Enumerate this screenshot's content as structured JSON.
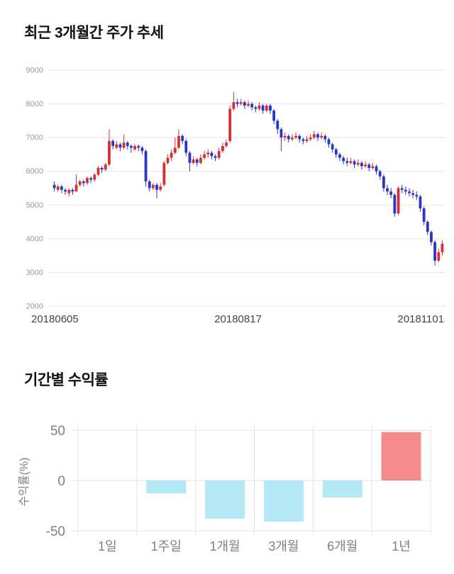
{
  "price_section": {
    "title": "최근 3개월간 주가 추세"
  },
  "returns_section": {
    "title": "기간별 수익률"
  },
  "chart_data": [
    {
      "type": "candlestick",
      "title": "최근 3개월간 주가 추세",
      "ylim": [
        2000,
        9000
      ],
      "y_ticks": [
        9000,
        8000,
        7000,
        6000,
        5000,
        4000,
        3000,
        2000
      ],
      "x_labels": [
        "20180605",
        "20180817",
        "20181101"
      ],
      "grid": true,
      "colors": {
        "up": "#d62f2f",
        "down": "#2a35c8",
        "grid": "#e6e6e6",
        "tick_text": "#999999",
        "x_label_text": "#444444"
      },
      "candles": [
        [
          5600,
          5700,
          5400,
          5500
        ],
        [
          5450,
          5600,
          5400,
          5550
        ],
        [
          5550,
          5600,
          5350,
          5450
        ],
        [
          5450,
          5500,
          5300,
          5400
        ],
        [
          5350,
          5500,
          5250,
          5450
        ],
        [
          5450,
          5500,
          5300,
          5400
        ],
        [
          5400,
          5900,
          5400,
          5600
        ],
        [
          5600,
          5750,
          5550,
          5700
        ],
        [
          5700,
          5750,
          5550,
          5650
        ],
        [
          5650,
          5850,
          5600,
          5800
        ],
        [
          5800,
          5850,
          5650,
          5750
        ],
        [
          5750,
          5950,
          5700,
          5900
        ],
        [
          5900,
          6150,
          5850,
          6100
        ],
        [
          6100,
          6150,
          5950,
          6050
        ],
        [
          6050,
          6250,
          6000,
          6200
        ],
        [
          6200,
          7250,
          6150,
          6900
        ],
        [
          6900,
          6950,
          6650,
          6750
        ],
        [
          6700,
          6900,
          6650,
          6800
        ],
        [
          6800,
          6850,
          6600,
          6700
        ],
        [
          6700,
          7100,
          6650,
          6850
        ],
        [
          6850,
          6900,
          6650,
          6750
        ],
        [
          6750,
          6800,
          6550,
          6700
        ],
        [
          6650,
          6800,
          6600,
          6750
        ],
        [
          6750,
          6800,
          6600,
          6700
        ],
        [
          6700,
          6750,
          6500,
          6600
        ],
        [
          6600,
          6650,
          5550,
          5700
        ],
        [
          5700,
          5750,
          5400,
          5500
        ],
        [
          5500,
          5650,
          5450,
          5600
        ],
        [
          5600,
          5650,
          5200,
          5450
        ],
        [
          5450,
          5650,
          5400,
          5550
        ],
        [
          5600,
          6300,
          5550,
          6250
        ],
        [
          6250,
          6500,
          6200,
          6400
        ],
        [
          6400,
          6650,
          6300,
          6550
        ],
        [
          6550,
          7000,
          6500,
          6700
        ],
        [
          6700,
          7250,
          6650,
          7050
        ],
        [
          7050,
          7100,
          6800,
          6900
        ],
        [
          6900,
          6950,
          6450,
          6550
        ],
        [
          6550,
          6600,
          6000,
          6250
        ],
        [
          6250,
          6450,
          6200,
          6350
        ],
        [
          6350,
          6400,
          6150,
          6250
        ],
        [
          6250,
          6500,
          6200,
          6400
        ],
        [
          6400,
          6600,
          6350,
          6500
        ],
        [
          6500,
          6650,
          6400,
          6550
        ],
        [
          6550,
          6600,
          6350,
          6450
        ],
        [
          6450,
          6500,
          6300,
          6400
        ],
        [
          6400,
          6700,
          6350,
          6600
        ],
        [
          6600,
          6850,
          6550,
          6750
        ],
        [
          6750,
          6950,
          6700,
          6850
        ],
        [
          6900,
          7950,
          6850,
          7850
        ],
        [
          7850,
          8350,
          7800,
          8050
        ],
        [
          8050,
          8150,
          7900,
          8000
        ],
        [
          8000,
          8150,
          7950,
          8050
        ],
        [
          8050,
          8100,
          7850,
          7950
        ],
        [
          7950,
          8100,
          7900,
          8000
        ],
        [
          8000,
          8050,
          7800,
          7900
        ],
        [
          7900,
          7950,
          7750,
          7850
        ],
        [
          7850,
          8050,
          7800,
          7950
        ],
        [
          7950,
          8000,
          7700,
          7800
        ],
        [
          7800,
          8000,
          7750,
          7950
        ],
        [
          7950,
          8000,
          7700,
          7800
        ],
        [
          7800,
          7850,
          7400,
          7500
        ],
        [
          7500,
          7550,
          7100,
          7250
        ],
        [
          7250,
          7300,
          6600,
          7000
        ],
        [
          7000,
          7150,
          6900,
          7050
        ],
        [
          7050,
          7100,
          6850,
          6950
        ],
        [
          6950,
          7100,
          6900,
          7000
        ],
        [
          7000,
          7150,
          6950,
          7050
        ],
        [
          7050,
          7100,
          6850,
          6950
        ],
        [
          6950,
          7000,
          6800,
          6900
        ],
        [
          6900,
          7050,
          6850,
          6950
        ],
        [
          6950,
          7100,
          6900,
          7000
        ],
        [
          7000,
          7200,
          6950,
          7100
        ],
        [
          7100,
          7150,
          6900,
          7000
        ],
        [
          7000,
          7150,
          6950,
          7050
        ],
        [
          7050,
          7100,
          6850,
          6950
        ],
        [
          6950,
          7000,
          6700,
          6800
        ],
        [
          6800,
          6850,
          6550,
          6650
        ],
        [
          6650,
          6700,
          6400,
          6500
        ],
        [
          6500,
          6550,
          6300,
          6400
        ],
        [
          6400,
          6450,
          6200,
          6300
        ],
        [
          6300,
          6400,
          6150,
          6250
        ],
        [
          6250,
          6400,
          6200,
          6300
        ],
        [
          6300,
          6350,
          6100,
          6200
        ],
        [
          6200,
          6350,
          6150,
          6250
        ],
        [
          6250,
          6300,
          6050,
          6150
        ],
        [
          6150,
          6300,
          6100,
          6200
        ],
        [
          6200,
          6250,
          6000,
          6100
        ],
        [
          6100,
          6250,
          6050,
          6150
        ],
        [
          6150,
          6200,
          5900,
          6000
        ],
        [
          6000,
          6050,
          5750,
          5850
        ],
        [
          5850,
          5900,
          5400,
          5500
        ],
        [
          5500,
          5600,
          5300,
          5400
        ],
        [
          5400,
          5500,
          5200,
          5300
        ],
        [
          5300,
          5350,
          4650,
          4750
        ],
        [
          4750,
          5550,
          4700,
          5500
        ],
        [
          5500,
          5600,
          5350,
          5450
        ],
        [
          5450,
          5550,
          5300,
          5400
        ],
        [
          5400,
          5500,
          5250,
          5350
        ],
        [
          5350,
          5450,
          5200,
          5300
        ],
        [
          5300,
          5400,
          5150,
          5250
        ],
        [
          5250,
          5300,
          4800,
          4900
        ],
        [
          4900,
          4950,
          4400,
          4500
        ],
        [
          4500,
          4550,
          4100,
          4200
        ],
        [
          4200,
          4250,
          3800,
          3900
        ],
        [
          3900,
          3950,
          3200,
          3350
        ],
        [
          3350,
          3700,
          3300,
          3600
        ],
        [
          3600,
          3950,
          3500,
          3850
        ]
      ]
    },
    {
      "type": "bar",
      "title": "기간별 수익률",
      "ylabel": "수익률(%)",
      "categories": [
        "1일",
        "1주일",
        "1개월",
        "3개월",
        "6개월",
        "1년"
      ],
      "values": [
        0,
        -13,
        -38,
        -41,
        -17,
        48
      ],
      "y_ticks": [
        50,
        0,
        -50
      ],
      "ylim": [
        -50,
        50
      ],
      "grid": true,
      "colors": {
        "positive": "#f58b8b",
        "negative": "#b5e8f5",
        "grid": "#e2e2e2",
        "text": "#808080"
      }
    }
  ]
}
